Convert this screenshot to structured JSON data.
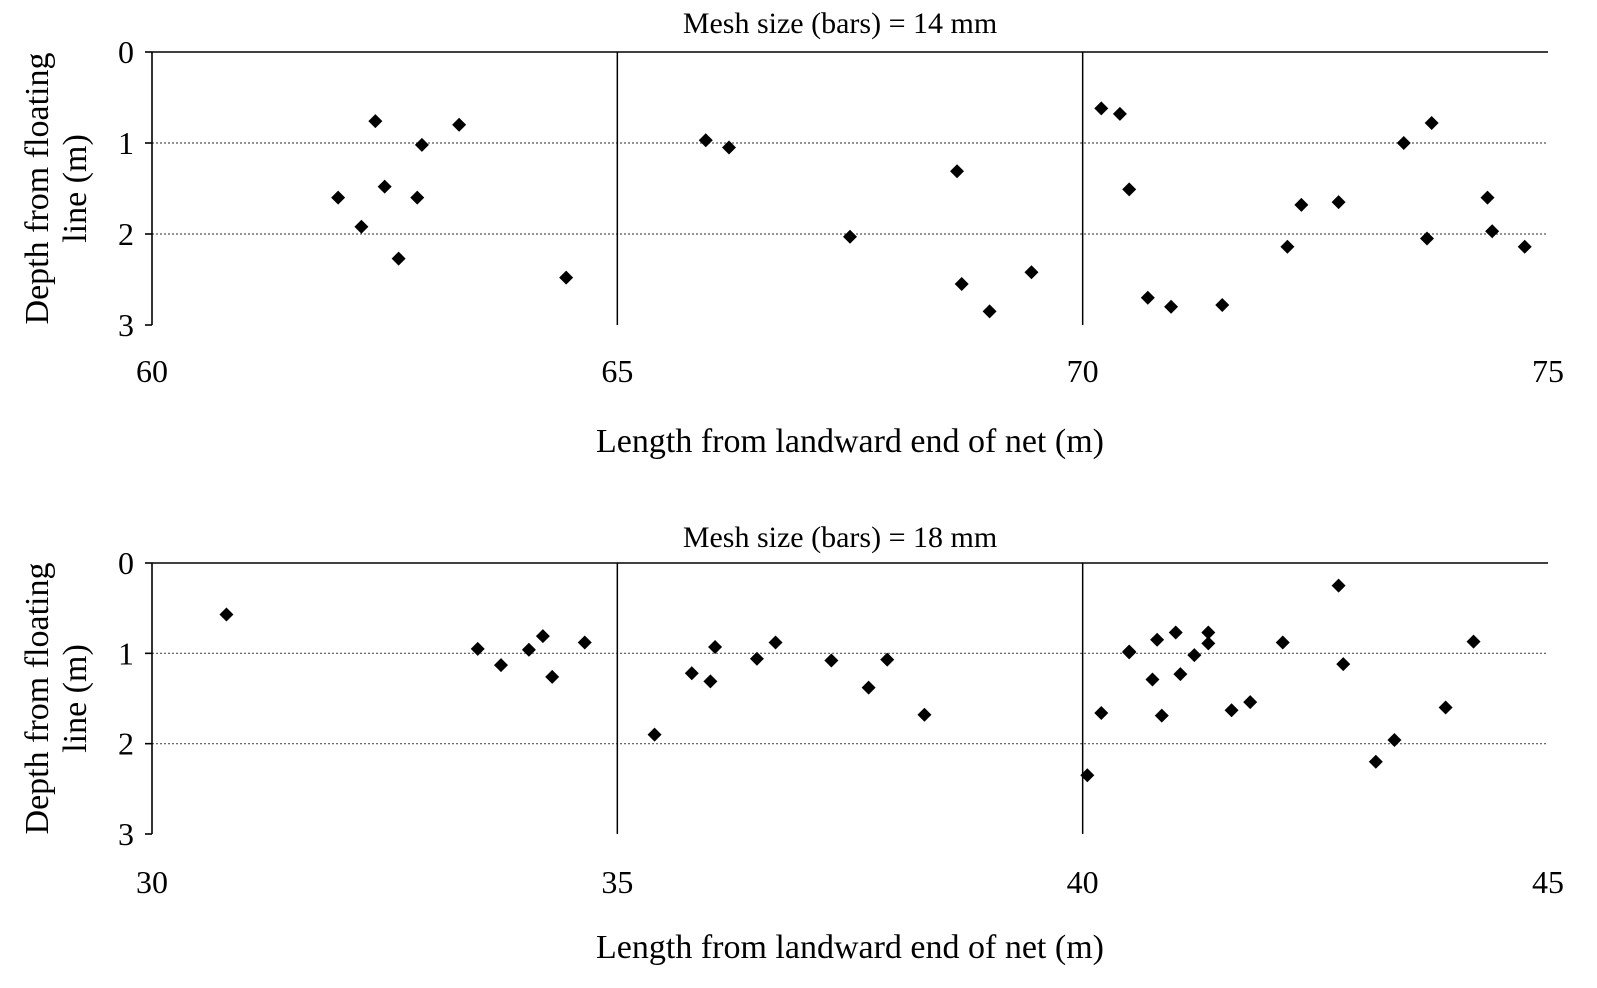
{
  "chart_data": [
    {
      "type": "scatter",
      "title": "Mesh size (bars) = 14 mm",
      "xlabel": "Length from landward end of net (m)",
      "ylabel_lines": [
        "Depth from floating",
        "line (m)"
      ],
      "xlim": [
        60,
        75
      ],
      "ylim": [
        0,
        3
      ],
      "y_inverted": true,
      "x_ticks": [
        "60",
        "65",
        "70",
        "75"
      ],
      "y_ticks": [
        "0",
        "1",
        "2",
        "3"
      ],
      "vertical_lines_x": [
        65,
        70
      ],
      "horizontal_gridlines_y": [
        1,
        2
      ],
      "marker": "diamond",
      "marker_color": "#000000",
      "series": [
        {
          "x": [
            62.0,
            62.25,
            62.4,
            62.5,
            62.65,
            62.85,
            62.9,
            63.3,
            64.45,
            65.95,
            66.2,
            67.5,
            68.65,
            68.7,
            69.0,
            69.45,
            70.2,
            70.4,
            70.5,
            70.7,
            70.95,
            71.5,
            72.2,
            72.35,
            72.75,
            73.45,
            73.7,
            73.75,
            74.35,
            74.4,
            74.75
          ],
          "y": [
            1.6,
            1.92,
            0.76,
            1.48,
            2.27,
            1.6,
            1.02,
            0.8,
            2.48,
            0.97,
            1.05,
            2.03,
            1.31,
            2.55,
            2.85,
            2.42,
            0.62,
            0.68,
            1.51,
            2.7,
            2.8,
            2.78,
            2.14,
            1.68,
            1.65,
            1.0,
            2.05,
            0.78,
            1.6,
            1.97,
            2.14
          ]
        }
      ]
    },
    {
      "type": "scatter",
      "title": "Mesh size (bars) = 18 mm",
      "xlabel": "Length from landward end of net (m)",
      "ylabel_lines": [
        "Depth from floating",
        "line (m)"
      ],
      "xlim": [
        30,
        45
      ],
      "ylim": [
        0,
        3
      ],
      "y_inverted": true,
      "x_ticks": [
        "30",
        "35",
        "40",
        "45"
      ],
      "y_ticks": [
        "0",
        "1",
        "2",
        "3"
      ],
      "vertical_lines_x": [
        35,
        40
      ],
      "horizontal_gridlines_y": [
        1,
        2
      ],
      "marker": "diamond",
      "marker_color": "#000000",
      "series": [
        {
          "x": [
            30.8,
            33.5,
            33.75,
            34.05,
            34.2,
            34.3,
            34.65,
            35.4,
            35.8,
            36.0,
            36.05,
            36.5,
            36.7,
            37.3,
            37.7,
            37.9,
            38.3,
            40.05,
            40.2,
            40.5,
            40.5,
            40.75,
            40.8,
            40.85,
            41.0,
            41.05,
            41.2,
            41.35,
            41.35,
            41.6,
            41.8,
            42.15,
            42.75,
            42.8,
            43.15,
            43.35,
            43.9,
            44.2
          ],
          "y": [
            0.57,
            0.95,
            1.13,
            0.96,
            0.81,
            1.26,
            0.88,
            1.9,
            1.22,
            1.31,
            0.93,
            1.06,
            0.88,
            1.08,
            1.38,
            1.07,
            1.68,
            2.35,
            1.66,
            0.98,
            0.99,
            1.29,
            0.85,
            1.69,
            0.77,
            1.23,
            1.02,
            0.77,
            0.89,
            1.63,
            1.54,
            0.88,
            0.25,
            1.12,
            2.2,
            1.96,
            1.6,
            0.87
          ]
        }
      ]
    }
  ]
}
